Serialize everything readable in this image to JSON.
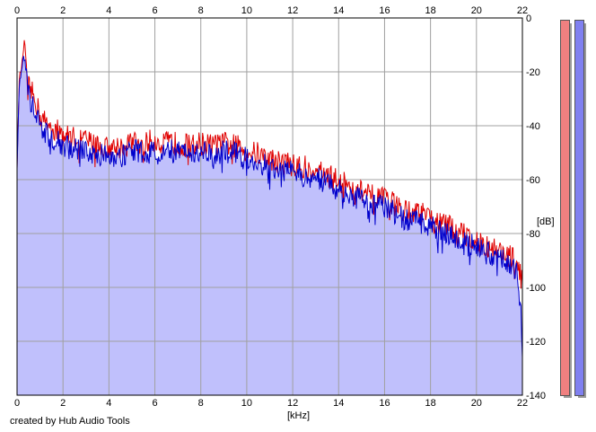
{
  "chart_data": {
    "type": "area",
    "xlabel": "[kHz]",
    "ylabel": "[dB]",
    "xlim": [
      0,
      22
    ],
    "ylim": [
      -140,
      0
    ],
    "x_ticks": [
      0,
      2,
      4,
      6,
      8,
      10,
      12,
      14,
      16,
      18,
      20,
      22
    ],
    "y_ticks": [
      0,
      -20,
      -40,
      -60,
      -80,
      -100,
      -120,
      -140
    ],
    "grid": true,
    "series": [
      {
        "color": "#e00000",
        "x": [
          0.0,
          0.1,
          0.2,
          0.3,
          0.5,
          0.8,
          1.0,
          1.5,
          2.0,
          2.5,
          3.0,
          3.5,
          4.0,
          4.5,
          5.0,
          5.5,
          6.0,
          6.5,
          7.0,
          7.5,
          8.0,
          8.5,
          9.0,
          9.5,
          10.0,
          10.5,
          11.0,
          11.5,
          12.0,
          12.5,
          13.0,
          13.5,
          14.0,
          14.5,
          15.0,
          15.5,
          16.0,
          16.5,
          17.0,
          17.5,
          18.0,
          18.5,
          19.0,
          19.5,
          20.0,
          20.5,
          21.0,
          21.5,
          21.8,
          22.0
        ],
        "values": [
          -55,
          -22,
          -18,
          -10,
          -25,
          -30,
          -36,
          -40,
          -43,
          -44,
          -45,
          -47,
          -48,
          -47,
          -46,
          -46,
          -45,
          -46,
          -46,
          -47,
          -46,
          -47,
          -46,
          -47,
          -49,
          -50,
          -52,
          -53,
          -54,
          -55,
          -56,
          -58,
          -60,
          -62,
          -64,
          -66,
          -67,
          -69,
          -71,
          -72,
          -74,
          -76,
          -78,
          -80,
          -82,
          -84,
          -86,
          -88,
          -91,
          -98
        ]
      },
      {
        "color": "#0000cc",
        "x": [
          0.0,
          0.1,
          0.2,
          0.3,
          0.5,
          0.8,
          1.0,
          1.5,
          2.0,
          2.5,
          3.0,
          3.5,
          4.0,
          4.5,
          5.0,
          5.5,
          6.0,
          6.5,
          7.0,
          7.5,
          8.0,
          8.5,
          9.0,
          9.5,
          10.0,
          10.5,
          11.0,
          11.5,
          12.0,
          12.5,
          13.0,
          13.5,
          14.0,
          14.5,
          15.0,
          15.5,
          16.0,
          16.5,
          17.0,
          17.5,
          18.0,
          18.5,
          19.0,
          19.5,
          20.0,
          20.5,
          21.0,
          21.5,
          21.8,
          22.0
        ],
        "values": [
          -55,
          -24,
          -20,
          -12,
          -28,
          -33,
          -40,
          -44,
          -47,
          -48,
          -49,
          -50,
          -51,
          -50,
          -49,
          -49,
          -48,
          -49,
          -49,
          -50,
          -49,
          -50,
          -49,
          -50,
          -52,
          -53,
          -55,
          -56,
          -57,
          -58,
          -59,
          -61,
          -63,
          -65,
          -67,
          -69,
          -70,
          -72,
          -74,
          -75,
          -77,
          -79,
          -81,
          -83,
          -85,
          -87,
          -89,
          -91,
          -95,
          -118
        ]
      }
    ],
    "channel_meter_colors": [
      "#f08080",
      "#8080f0"
    ]
  },
  "footer": {
    "credit": "created by Hub Audio Tools"
  }
}
